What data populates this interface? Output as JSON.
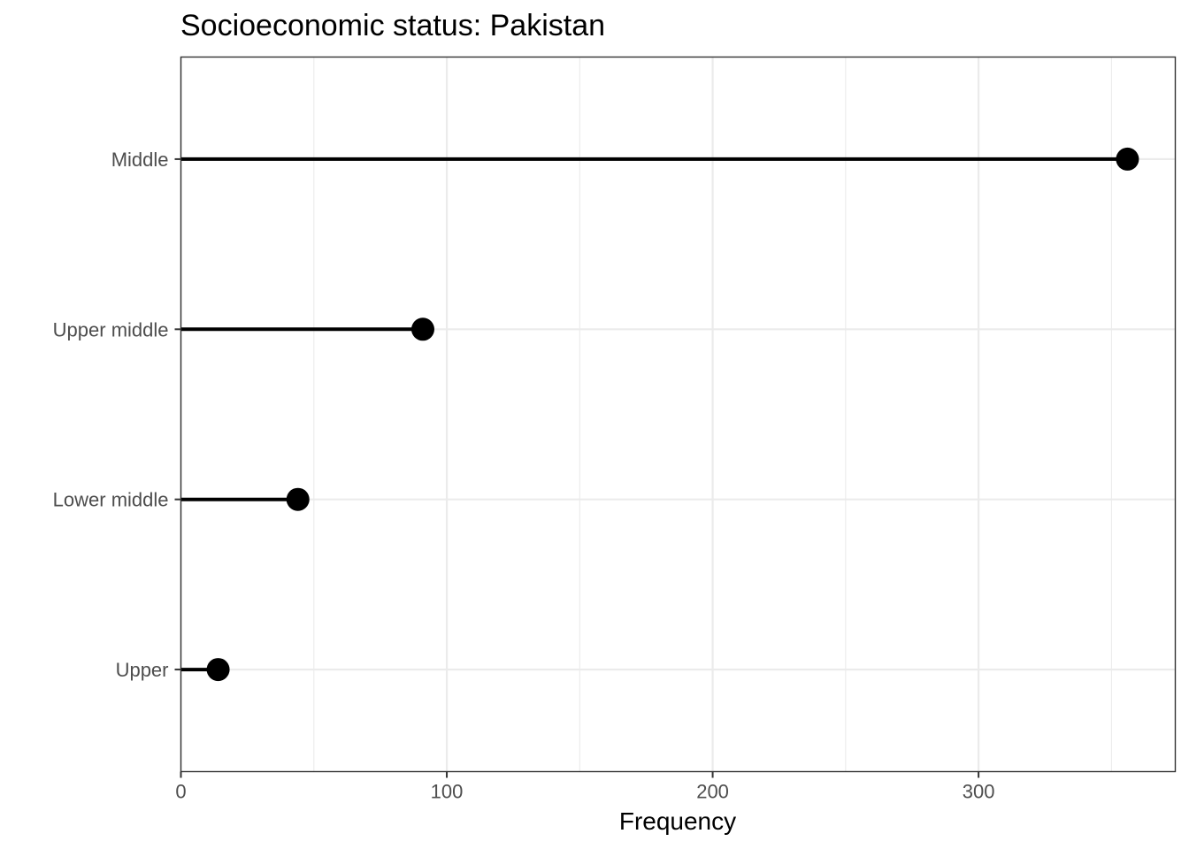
{
  "chart_data": {
    "type": "lollipop",
    "title": "Socioeconomic status: Pakistan",
    "xlabel": "Frequency",
    "ylabel": "",
    "categories": [
      "Middle",
      "Upper middle",
      "Lower middle",
      "Upper"
    ],
    "values": [
      356,
      91,
      44,
      14
    ],
    "xlim": [
      0,
      374
    ],
    "xticks": [
      0,
      100,
      200,
      300
    ],
    "xtick_labels": [
      "0",
      "100",
      "200",
      "300"
    ],
    "grid": true,
    "legend": "none",
    "colors": {
      "marks": "#000000",
      "grid": "#ebebeb",
      "text": "#4d4d4d"
    }
  }
}
